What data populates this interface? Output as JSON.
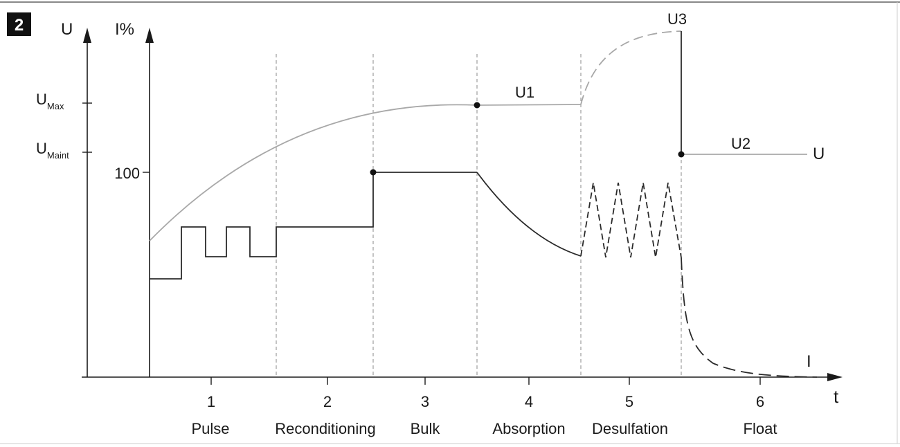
{
  "figure": {
    "number": "2"
  },
  "axes": {
    "u_axis_label": "U",
    "i_axis_label": "I%",
    "t_axis_label": "t",
    "umax_main": "U",
    "umax_sub": "Max",
    "umaint_main": "U",
    "umaint_sub": "Maint",
    "i100_label": "100"
  },
  "curves": {
    "u1_label": "U1",
    "u2_label": "U2",
    "u3_label": "U3",
    "u_end_label": "U",
    "i_end_label": "I"
  },
  "phases": [
    {
      "number": "1",
      "name": "Pulse"
    },
    {
      "number": "2",
      "name": "Reconditioning"
    },
    {
      "number": "3",
      "name": "Bulk"
    },
    {
      "number": "4",
      "name": "Absorption"
    },
    {
      "number": "5",
      "name": "Desulfation"
    },
    {
      "number": "6",
      "name": "Float"
    }
  ],
  "colors": {
    "voltage_curve": "#a8a8a8",
    "current_curve": "#2a2a2a",
    "axis": "#1a1a1a",
    "divider": "#8a8a8a",
    "badge": "#111111",
    "frame": "#888888"
  }
}
